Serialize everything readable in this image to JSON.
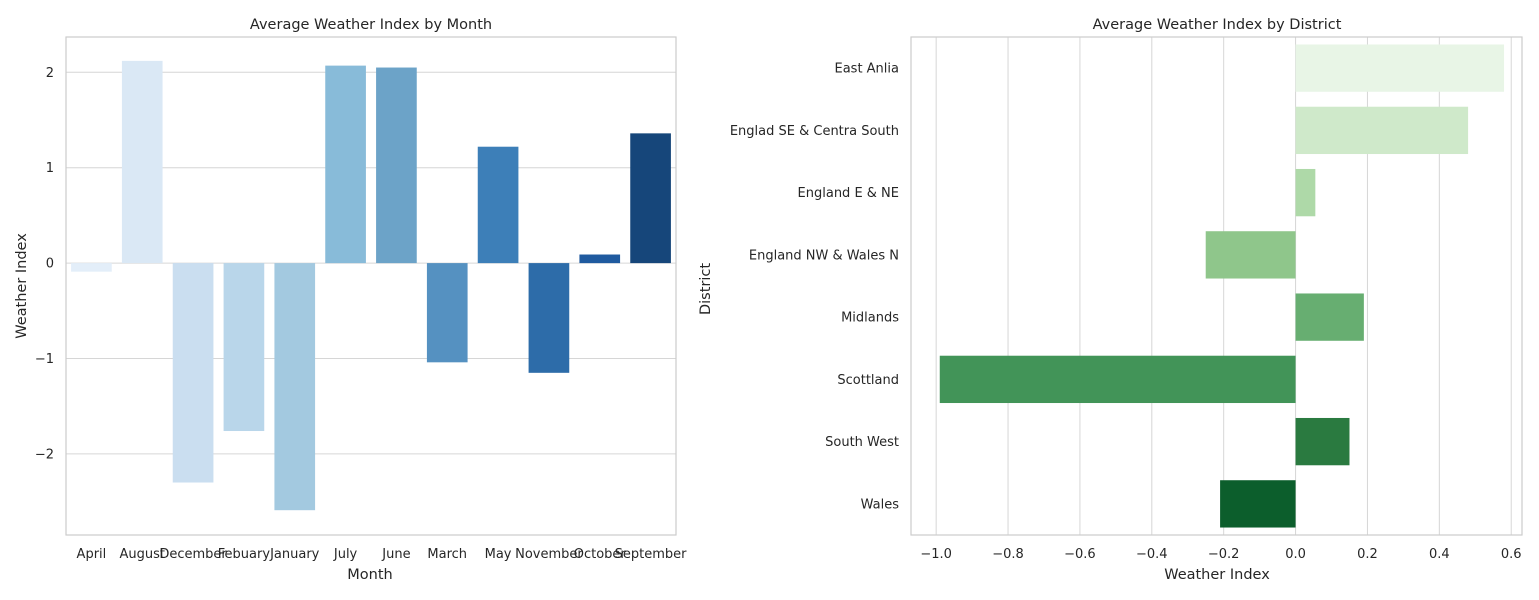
{
  "chart_data": [
    {
      "type": "bar",
      "orientation": "vertical",
      "title": "Average Weather Index by Month",
      "xlabel": "Month",
      "ylabel": "Weather Index",
      "categories": [
        "April",
        "August",
        "December",
        "Febuary",
        "January",
        "July",
        "June",
        "March",
        "May",
        "November",
        "October",
        "September"
      ],
      "values": [
        -0.09,
        2.12,
        -2.3,
        -1.76,
        -2.59,
        2.07,
        2.05,
        -1.04,
        1.22,
        -1.15,
        0.09,
        1.36
      ],
      "ylim": [
        -2.85,
        2.37
      ],
      "yticks": [
        2,
        1,
        0,
        -1,
        -2
      ],
      "ytick_labels": [
        "2",
        "1",
        "0",
        "−1",
        "−2"
      ],
      "grid": "y",
      "palette": "Blues",
      "colors": [
        "#e3eef9",
        "#dae8f5",
        "#cadef0",
        "#b9d6ea",
        "#a3c9e0",
        "#88bbd9",
        "#6ca3c8",
        "#5591c1",
        "#3d7fb8",
        "#2d6ca9",
        "#1f5a9f",
        "#16467a"
      ]
    },
    {
      "type": "bar",
      "orientation": "horizontal",
      "title": "Average Weather Index by District",
      "xlabel": "Weather Index",
      "ylabel": "District",
      "categories": [
        "East Anlia",
        "Englad SE & Centra South",
        "England E & NE",
        "England NW & Wales N",
        "Midlands",
        "Scottland",
        "South West",
        "Wales"
      ],
      "values": [
        0.58,
        0.48,
        0.055,
        -0.25,
        0.19,
        -0.99,
        0.15,
        -0.21
      ],
      "xlim": [
        -1.07,
        0.63
      ],
      "xticks": [
        -1.0,
        -0.8,
        -0.6,
        -0.4,
        -0.2,
        0.0,
        0.2,
        0.4,
        0.6
      ],
      "xtick_labels": [
        "−1.0",
        "−0.8",
        "−0.6",
        "−0.4",
        "−0.2",
        "0.0",
        "0.2",
        "0.4",
        "0.6"
      ],
      "grid": "x",
      "palette": "Greens",
      "colors": [
        "#e8f5e6",
        "#cfe9ca",
        "#aed9a8",
        "#8fc68b",
        "#67ae71",
        "#429458",
        "#2a7a40",
        "#0c5e2c"
      ]
    }
  ]
}
